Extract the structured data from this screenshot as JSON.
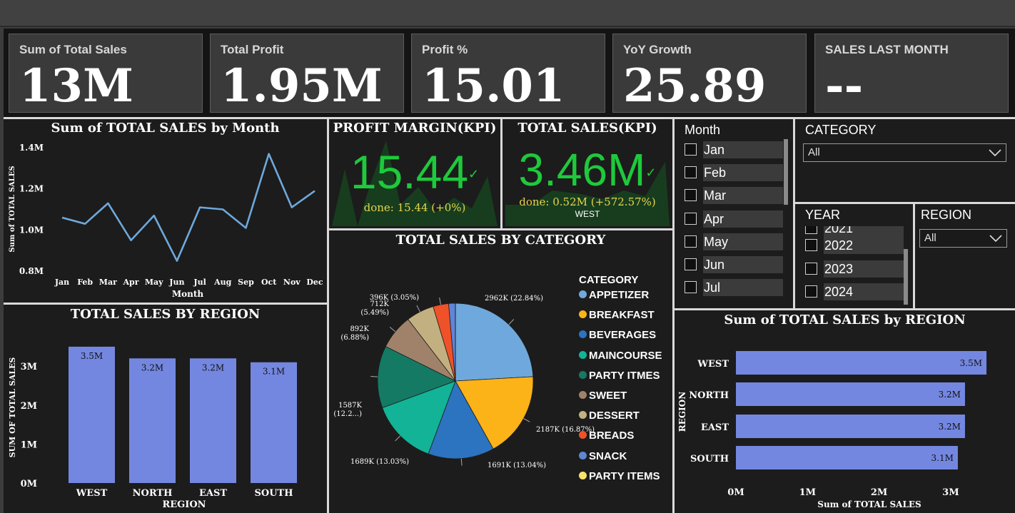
{
  "kpis": [
    {
      "label": "Sum of Total Sales",
      "value": "13M"
    },
    {
      "label": "Total Profit",
      "value": "1.95M"
    },
    {
      "label": "Profit %",
      "value": "15.01"
    },
    {
      "label": "YoY Growth",
      "value": "25.89"
    },
    {
      "label": "SALES LAST MONTH",
      "value": "--"
    }
  ],
  "kpi_profit_margin": {
    "title": "PROFIT MARGIN(KPI)",
    "value": "15.44",
    "goal": "done: 15.44 (+0%)"
  },
  "kpi_total_sales": {
    "title": "TOTAL SALES(KPI)",
    "value": "3.46M",
    "goal": "done: 0.52M (+572.57%)",
    "sub": "WEST"
  },
  "slicers": {
    "month": {
      "title": "Month",
      "items": [
        "Jan",
        "Feb",
        "Mar",
        "Apr",
        "May",
        "Jun",
        "Jul"
      ]
    },
    "category": {
      "title": "CATEGORY",
      "selected": "All"
    },
    "year": {
      "title": "YEAR",
      "partial": "2021",
      "items": [
        "2022",
        "2023",
        "2024"
      ]
    },
    "region": {
      "title": "REGION",
      "selected": "All"
    }
  },
  "colors": {
    "accent_green": "#1ec93c",
    "bar_blue": "#7487e0",
    "line_blue": "#6fa8dc",
    "goal_yellow": "#e8d44d"
  },
  "chart_data": [
    {
      "type": "line",
      "title": "Sum of TOTAL SALES by Month",
      "xlabel": "Month",
      "ylabel": "Sum of TOTAL SALES",
      "categories": [
        "Jan",
        "Feb",
        "Mar",
        "Apr",
        "May",
        "Jun",
        "Jul",
        "Aug",
        "Sep",
        "Oct",
        "Nov",
        "Dec"
      ],
      "values": [
        1.06,
        1.03,
        1.13,
        0.95,
        1.07,
        0.85,
        1.11,
        1.1,
        1.01,
        1.37,
        1.11,
        1.19
      ],
      "unit": "M",
      "ylim": [
        0.8,
        1.4
      ],
      "yticks": [
        "0.8M",
        "1.0M",
        "1.2M",
        "1.4M"
      ],
      "ytick_values": [
        0.8,
        1.0,
        1.2,
        1.4
      ]
    },
    {
      "type": "bar",
      "title": "TOTAL SALES BY REGION",
      "xlabel": "REGION",
      "ylabel": "SUM OF TOTAL SALES",
      "categories": [
        "WEST",
        "NORTH",
        "EAST",
        "SOUTH"
      ],
      "values": [
        3.5,
        3.2,
        3.2,
        3.1
      ],
      "data_labels": [
        "3.5M",
        "3.2M",
        "3.2M",
        "3.1M"
      ],
      "ylim": [
        0,
        3.5
      ],
      "yticks": [
        "0M",
        "1M",
        "2M",
        "3M"
      ],
      "ytick_values": [
        0,
        1,
        2,
        3
      ]
    },
    {
      "type": "pie",
      "title": "TOTAL SALES BY CATEGORY",
      "legend_title": "CATEGORY",
      "legend_position": "right",
      "categories": [
        "APPETIZER",
        "BREAKFAST",
        "BEVERAGES",
        "MAINCOURSE",
        "PARTY ITMES",
        "SWEET",
        "DESSERT",
        "BREADS",
        "SNACK",
        "PARTY ITEMS"
      ],
      "values": [
        2962,
        2187,
        1691,
        1689,
        1587,
        892,
        712,
        396,
        170,
        2
      ],
      "colors": [
        "#6fa8dc",
        "#fbb318",
        "#2c73c0",
        "#12b396",
        "#157a64",
        "#a0826a",
        "#c3b081",
        "#ef5229",
        "#6085d7",
        "#fae36a"
      ],
      "data_labels": [
        "2962K (22.84%)",
        "2187K (16.87%)",
        "1691K (13.04%)",
        "1689K (13.03%)",
        "1587K (12.2...)",
        "892K (6.88%)",
        "712K (5.49%)",
        "396K (3.05%)",
        "",
        ""
      ]
    },
    {
      "type": "bar",
      "orientation": "horizontal",
      "title": "Sum of TOTAL SALES by REGION",
      "xlabel": "Sum of TOTAL SALES",
      "ylabel": "REGION",
      "categories": [
        "WEST",
        "NORTH",
        "EAST",
        "SOUTH"
      ],
      "values": [
        3.5,
        3.2,
        3.2,
        3.1
      ],
      "data_labels": [
        "3.5M",
        "3.2M",
        "3.2M",
        "3.1M"
      ],
      "xlim": [
        0,
        3.5
      ],
      "xticks": [
        "0M",
        "1M",
        "2M",
        "3M"
      ],
      "xtick_values": [
        0,
        1,
        2,
        3
      ]
    }
  ]
}
